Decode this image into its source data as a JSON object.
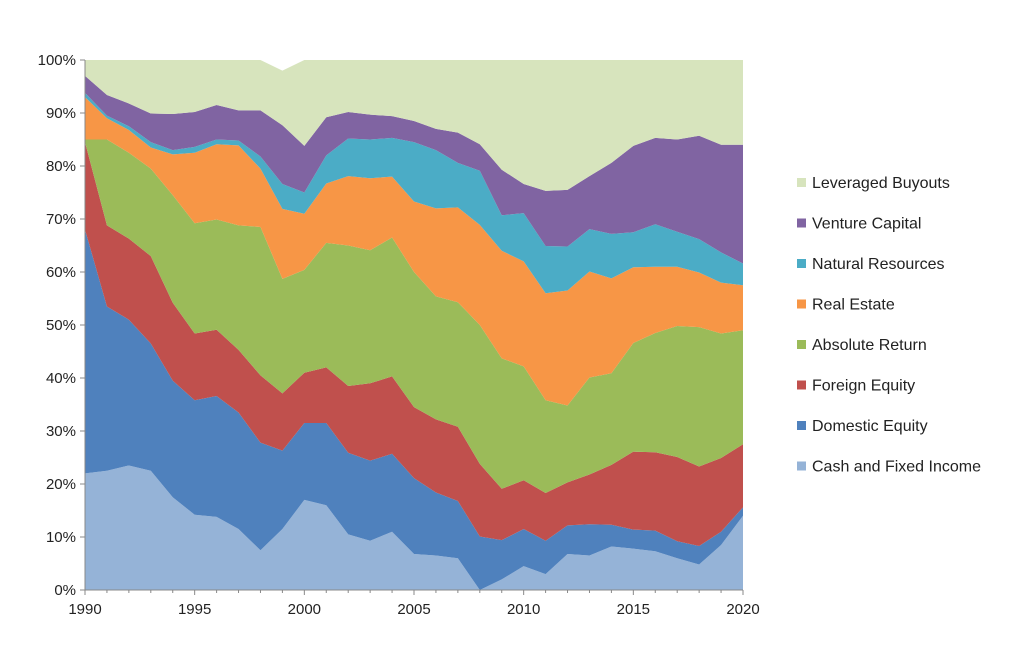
{
  "chart_data": {
    "type": "area",
    "stacking": "percent",
    "title": "",
    "xlabel": "",
    "ylabel": "",
    "xlim": [
      1990,
      2020
    ],
    "ylim": [
      0,
      100
    ],
    "x_ticks": [
      1990,
      1995,
      2000,
      2005,
      2010,
      2015,
      2020
    ],
    "x_tick_labels": [
      "1990",
      "1995",
      "2000",
      "2005",
      "2010",
      "2015",
      "2020"
    ],
    "y_ticks": [
      0,
      10,
      20,
      30,
      40,
      50,
      60,
      70,
      80,
      90,
      100
    ],
    "y_tick_labels": [
      "0%",
      "10%",
      "20%",
      "30%",
      "40%",
      "50%",
      "60%",
      "70%",
      "80%",
      "90%",
      "100%"
    ],
    "grid": false,
    "legend_position": "right",
    "x": [
      1990,
      1991,
      1992,
      1993,
      1994,
      1995,
      1996,
      1997,
      1998,
      1999,
      2000,
      2001,
      2002,
      2003,
      2004,
      2005,
      2006,
      2007,
      2008,
      2009,
      2010,
      2011,
      2012,
      2013,
      2014,
      2015,
      2016,
      2017,
      2018,
      2019,
      2020
    ],
    "series": [
      {
        "name": "Cash and Fixed Income",
        "color": "#95b3d7",
        "values": [
          22,
          22.5,
          23.5,
          22.5,
          17.5,
          14.2,
          13.8,
          11.5,
          7.5,
          11.5,
          17,
          16,
          10.5,
          9.3,
          11,
          6.8,
          6.5,
          6,
          0,
          2,
          4.5,
          3,
          6.8,
          6.5,
          8.2,
          7.8,
          7.3,
          6,
          4.8,
          8.5,
          14
        ]
      },
      {
        "name": "Domestic Equity",
        "color": "#4f81bd",
        "values": [
          46,
          31,
          27.5,
          24,
          22,
          21.6,
          22.8,
          22,
          20.3,
          14.8,
          14.5,
          15.5,
          15.4,
          15.1,
          14.7,
          14.3,
          11.9,
          10.8,
          10.1,
          7.4,
          7,
          6.3,
          5.4,
          5.9,
          4.1,
          3.6,
          3.9,
          3.2,
          3.5,
          2.5,
          1.6
        ]
      },
      {
        "name": "Foreign Equity",
        "color": "#c0504d",
        "values": [
          16.5,
          15.3,
          15.3,
          16.5,
          14.7,
          12.6,
          12.5,
          11.8,
          12.7,
          10.8,
          9.5,
          10.5,
          12.6,
          14.6,
          14.6,
          13.4,
          13.8,
          14,
          13.7,
          9.7,
          9.2,
          9,
          8.1,
          9.4,
          11.3,
          14.7,
          14.8,
          15.9,
          15,
          13.9,
          11.9
        ]
      },
      {
        "name": "Absolute Return",
        "color": "#9bbb59",
        "values": [
          0.5,
          16.2,
          16.2,
          16.5,
          20.3,
          20.8,
          20.8,
          23.5,
          28,
          21.6,
          19.4,
          23.5,
          26.5,
          25.1,
          26.2,
          25.5,
          23.2,
          23.5,
          26.2,
          24.6,
          21.5,
          17.5,
          14.5,
          18.3,
          17.3,
          20.5,
          22.5,
          24.7,
          26.3,
          23.5,
          21.5
        ]
      },
      {
        "name": "Real Estate",
        "color": "#f79646",
        "values": [
          8,
          4,
          4.3,
          4,
          7.7,
          13.3,
          14.2,
          15.1,
          11,
          13.2,
          10.6,
          11.2,
          13.1,
          13.6,
          11.5,
          13.3,
          16.6,
          17.9,
          18.9,
          20.3,
          19.8,
          20.2,
          21.7,
          20,
          17.9,
          14.3,
          12.5,
          11.2,
          10.3,
          9.6,
          8.5
        ]
      },
      {
        "name": "Natural Resources",
        "color": "#4bacc6",
        "values": [
          0.8,
          0.5,
          0.7,
          1,
          0.8,
          1.1,
          0.9,
          0.9,
          2.3,
          4.7,
          4,
          5.3,
          7.1,
          7.3,
          7.3,
          11.2,
          11,
          8.4,
          10.2,
          6.7,
          9.1,
          8.9,
          8.3,
          8,
          8.4,
          6.6,
          8,
          6.6,
          6.3,
          5.7,
          4.1
        ]
      },
      {
        "name": "Venture Capital",
        "color": "#8064a2",
        "values": [
          3.2,
          3.9,
          4.3,
          5.4,
          6.8,
          6.6,
          6.5,
          5.7,
          8.7,
          11.1,
          8.8,
          7.2,
          5,
          4.7,
          4.1,
          4,
          4,
          5.7,
          5,
          8.6,
          5.5,
          10.4,
          10.7,
          10,
          13.4,
          16.3,
          16.3,
          17.4,
          19.5,
          20.3,
          22.4
        ]
      },
      {
        "name": "Leveraged Buyouts",
        "color": "#d7e4bd",
        "values": [
          3,
          6.6,
          8.2,
          10.1,
          10.2,
          9.8,
          8.5,
          9.5,
          9.5,
          10.3,
          16.2,
          10.8,
          9.8,
          10.3,
          10.6,
          11.5,
          13,
          13.7,
          15.9,
          20.7,
          23.4,
          24.7,
          24.5,
          21.9,
          19.4,
          16.2,
          14.7,
          15,
          14.3,
          16,
          16
        ]
      }
    ]
  }
}
